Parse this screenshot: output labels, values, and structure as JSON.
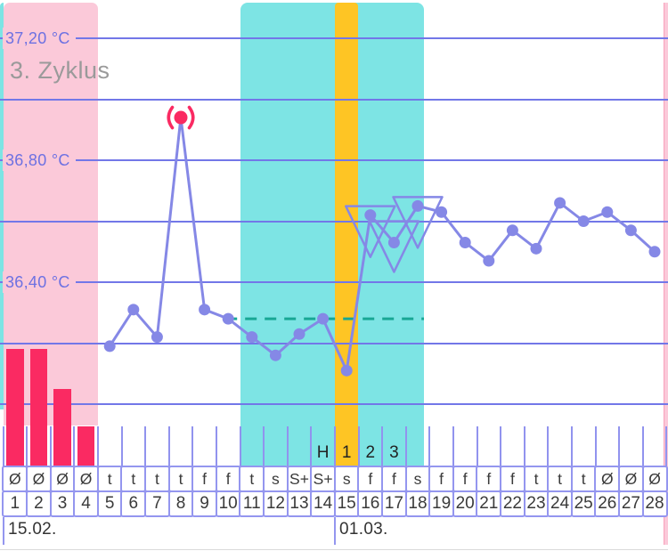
{
  "title": "3. Zyklus",
  "chart_data": {
    "type": "line",
    "title": "3. Zyklus",
    "unit": "°C",
    "y_axis_labels": [
      {
        "text": "37,20 °C",
        "temp": 37.2
      },
      {
        "text": "36,80 °C",
        "temp": 36.8
      },
      {
        "text": "36,40 °C",
        "temp": 36.4
      }
    ],
    "y_gridline_temps": [
      37.2,
      37.0,
      36.8,
      36.6,
      36.4,
      36.2,
      36.0
    ],
    "y_range": [
      35.95,
      37.32
    ],
    "day_numbers": [
      1,
      2,
      3,
      4,
      5,
      6,
      7,
      8,
      9,
      10,
      11,
      12,
      13,
      14,
      15,
      16,
      17,
      18,
      19,
      20,
      21,
      22,
      23,
      24,
      25,
      26,
      27,
      28
    ],
    "temperatures": [
      null,
      null,
      null,
      null,
      36.19,
      36.31,
      36.22,
      36.94,
      36.31,
      36.28,
      36.22,
      36.16,
      36.23,
      36.28,
      36.11,
      36.62,
      36.53,
      36.65,
      36.63,
      36.53,
      36.47,
      36.57,
      36.51,
      36.66,
      36.6,
      36.63,
      36.57,
      36.5
    ],
    "excluded_day": 8,
    "coverline": {
      "temp": 36.28,
      "from_day": 10,
      "to_day": 18
    },
    "period_days": [
      1,
      4
    ],
    "fertile_window_days": [
      11,
      18
    ],
    "ovulation_day": 15,
    "period_bars": [
      {
        "day": 1,
        "intensity": 3
      },
      {
        "day": 2,
        "intensity": 3
      },
      {
        "day": 3,
        "intensity": 2
      },
      {
        "day": 4,
        "intensity": 1
      }
    ],
    "rise_markers": [
      {
        "day": 14,
        "label": "H"
      },
      {
        "day": 15,
        "label": "1"
      },
      {
        "day": 16,
        "label": "2"
      },
      {
        "day": 17,
        "label": "3"
      }
    ],
    "triangle_marker_days": [
      16,
      17,
      18
    ],
    "symbols": [
      "Ø",
      "Ø",
      "Ø",
      "Ø",
      "t",
      "t",
      "t",
      "t",
      "f",
      "f",
      "t",
      "s",
      "S+",
      "S+",
      "s",
      "f",
      "f",
      "s",
      "f",
      "f",
      "f",
      "f",
      "t",
      "t",
      "t",
      "Ø",
      "Ø",
      "Ø"
    ],
    "dates": [
      {
        "day": 1,
        "label": "15.02."
      },
      {
        "day": 15,
        "label": "01.03."
      }
    ]
  },
  "colors": {
    "background": "#ffffff",
    "gridline": "#7277e8",
    "axis_label": "#6d71e2",
    "title": "#9a9a9a",
    "line": "#8588e6",
    "point": "#8588e6",
    "excluded_point": "#fa2a62",
    "period_bar": "#fa2a62",
    "period_region": "#fbc9d9",
    "fertile_region": "#7de4e4",
    "ovulation_column": "#fec524",
    "coverline": "#18a795",
    "cell_border": "#9496ef",
    "tick": "#9193ee",
    "cell_text": "#3a3a3a",
    "marker_text": "#222222",
    "bottom_hairline": "#dadada"
  }
}
